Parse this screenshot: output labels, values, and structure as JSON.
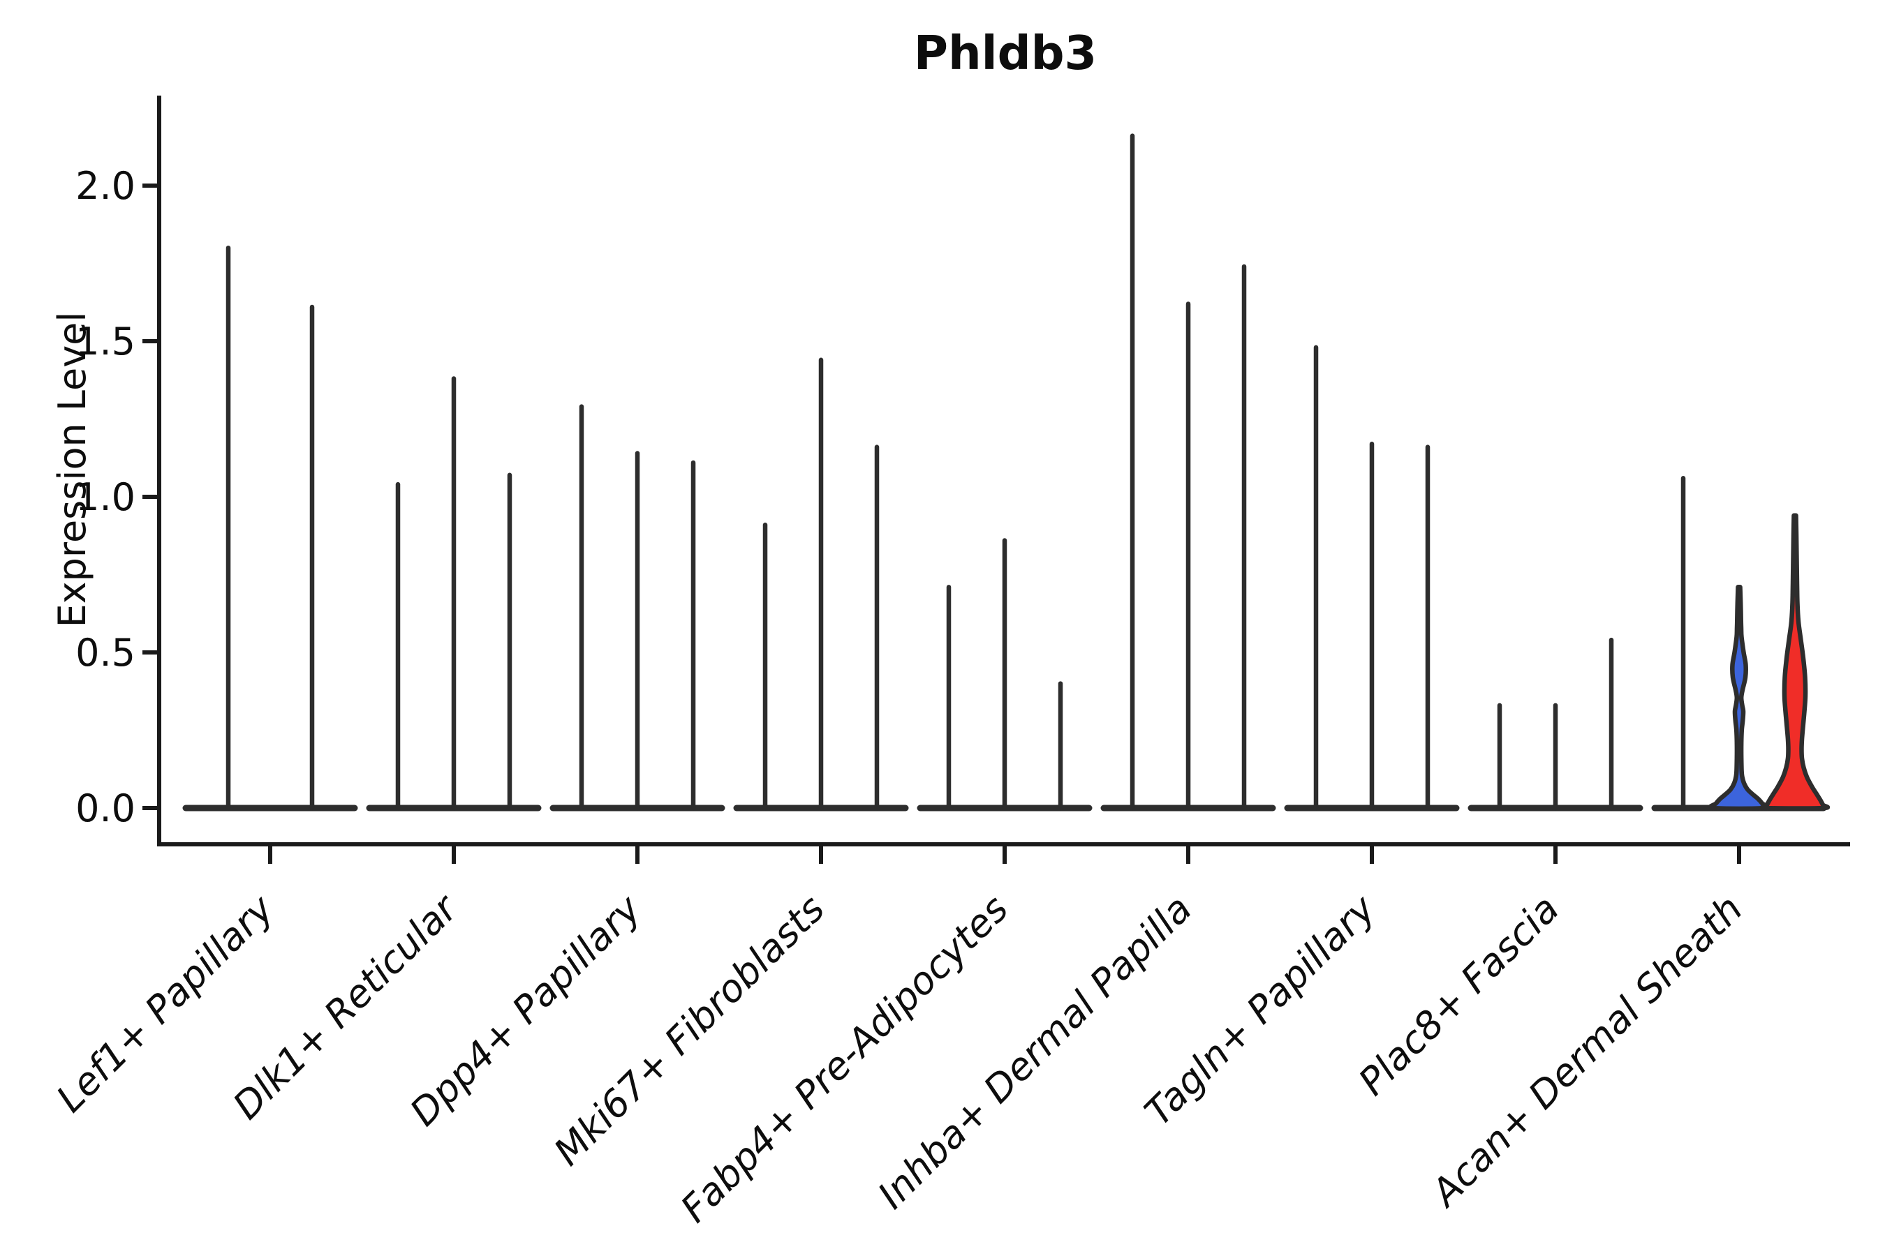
{
  "chart_data": {
    "type": "violin",
    "title": "Phldb3",
    "ylabel": "Expression Level",
    "xlabel": "",
    "ylim": [
      -0.12,
      2.29
    ],
    "yticks": [
      0.0,
      0.5,
      1.0,
      1.5,
      2.0
    ],
    "ytick_labels": [
      "0.0",
      "0.5",
      "1.0",
      "1.5",
      "2.0"
    ],
    "grid": false,
    "legend": "none",
    "x_label_rotation_deg": 45,
    "categories": [
      "Lef1+ Papillary",
      "Dlk1+ Reticular",
      "Dpp4+ Papillary",
      "Mki67+ Fibroblasts",
      "Fabp4+ Pre-Adipocytes",
      "Inhba+ Dermal Papilla",
      "Tagln+ Papillary",
      "Plac8+ Fascia",
      "Acan+ Dermal Sheath"
    ],
    "groups": [
      {
        "category": "Lef1+ Papillary",
        "violins": [
          {
            "style": "spike",
            "max": 1.8
          },
          {
            "style": "spike",
            "max": 1.61
          }
        ]
      },
      {
        "category": "Dlk1+ Reticular",
        "violins": [
          {
            "style": "spike",
            "max": 1.04
          },
          {
            "style": "spike",
            "max": 1.38
          },
          {
            "style": "spike",
            "max": 1.07
          }
        ]
      },
      {
        "category": "Dpp4+ Papillary",
        "violins": [
          {
            "style": "spike",
            "max": 1.29
          },
          {
            "style": "spike",
            "max": 1.14
          },
          {
            "style": "spike",
            "max": 1.11
          }
        ]
      },
      {
        "category": "Mki67+ Fibroblasts",
        "violins": [
          {
            "style": "spike",
            "max": 0.91
          },
          {
            "style": "spike",
            "max": 1.44
          },
          {
            "style": "spike",
            "max": 1.16
          }
        ]
      },
      {
        "category": "Fabp4+ Pre-Adipocytes",
        "violins": [
          {
            "style": "spike",
            "max": 0.71
          },
          {
            "style": "spike",
            "max": 0.86
          },
          {
            "style": "spike",
            "max": 0.4
          }
        ]
      },
      {
        "category": "Inhba+ Dermal Papilla",
        "violins": [
          {
            "style": "spike",
            "max": 2.16
          },
          {
            "style": "spike",
            "max": 1.62
          },
          {
            "style": "spike",
            "max": 1.74
          }
        ]
      },
      {
        "category": "Tagln+ Papillary",
        "violins": [
          {
            "style": "spike",
            "max": 1.48
          },
          {
            "style": "spike",
            "max": 1.17
          },
          {
            "style": "spike",
            "max": 1.16
          }
        ]
      },
      {
        "category": "Plac8+ Fascia",
        "violins": [
          {
            "style": "spike",
            "max": 0.33
          },
          {
            "style": "spike",
            "max": 0.33
          },
          {
            "style": "spike",
            "max": 0.54
          }
        ]
      },
      {
        "category": "Acan+ Dermal Sheath",
        "violins": [
          {
            "style": "spike",
            "max": 1.06
          },
          {
            "style": "density",
            "max": 0.71,
            "color": "#3c64dc",
            "name": "violin-density-blue",
            "profile": [
              [
                0.71,
                1.5
              ],
              [
                0.66,
                2.2
              ],
              [
                0.62,
                2.6
              ],
              [
                0.58,
                3.0
              ],
              [
                0.55,
                3.5
              ],
              [
                0.5,
                6.5
              ],
              [
                0.46,
                9.5
              ],
              [
                0.42,
                9.0
              ],
              [
                0.38,
                5.0
              ],
              [
                0.355,
                3.2
              ],
              [
                0.33,
                4.5
              ],
              [
                0.31,
                6.0
              ],
              [
                0.28,
                5.2
              ],
              [
                0.25,
                3.8
              ],
              [
                0.21,
                3.2
              ],
              [
                0.16,
                3.2
              ],
              [
                0.12,
                3.6
              ],
              [
                0.1,
                4.5
              ],
              [
                0.08,
                7.0
              ],
              [
                0.06,
                12.0
              ],
              [
                0.045,
                19.0
              ],
              [
                0.03,
                27.0
              ],
              [
                0.015,
                33.0
              ],
              [
                0.0,
                37.0
              ]
            ]
          },
          {
            "style": "density",
            "max": 0.94,
            "color": "#f02d28",
            "name": "violin-density-red",
            "profile": [
              [
                0.94,
                1.5
              ],
              [
                0.88,
                2.0
              ],
              [
                0.8,
                2.5
              ],
              [
                0.72,
                3.0
              ],
              [
                0.66,
                3.5
              ],
              [
                0.6,
                5.0
              ],
              [
                0.54,
                8.5
              ],
              [
                0.48,
                12.0
              ],
              [
                0.42,
                14.5
              ],
              [
                0.36,
                15.0
              ],
              [
                0.31,
                13.5
              ],
              [
                0.26,
                11.5
              ],
              [
                0.22,
                10.0
              ],
              [
                0.19,
                9.5
              ],
              [
                0.16,
                10.0
              ],
              [
                0.13,
                12.5
              ],
              [
                0.1,
                17.0
              ],
              [
                0.07,
                24.0
              ],
              [
                0.045,
                31.0
              ],
              [
                0.025,
                36.5
              ],
              [
                0.01,
                40.0
              ],
              [
                0.0,
                41.0
              ]
            ]
          }
        ]
      }
    ],
    "colors": {
      "axis": "#1a1a1a",
      "text": "#0d0d0d",
      "violin_stroke": "#2d2d2d",
      "blue_fill": "#3c64dc",
      "red_fill": "#f02d28",
      "background": "#ffffff"
    }
  }
}
